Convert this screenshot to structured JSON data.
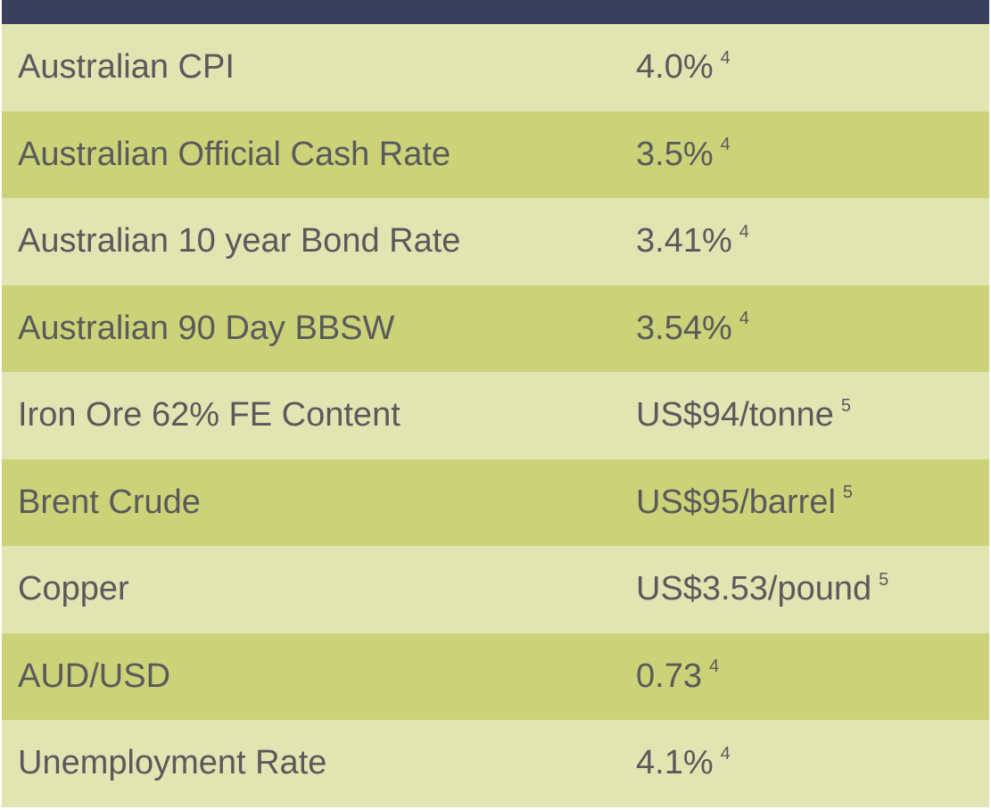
{
  "rows": [
    {
      "label": "Australian CPI",
      "value": "4.0%",
      "note": "4"
    },
    {
      "label": "Australian Official Cash Rate",
      "value": "3.5%",
      "note": "4"
    },
    {
      "label": "Australian 10 year Bond Rate",
      "value": "3.41%",
      "note": "4"
    },
    {
      "label": "Australian 90 Day BBSW",
      "value": "3.54%",
      "note": "4"
    },
    {
      "label": "Iron Ore 62% FE Content",
      "value": "US$94/tonne",
      "note": "5"
    },
    {
      "label": "Brent Crude",
      "value": "US$95/barrel",
      "note": "5"
    },
    {
      "label": "Copper",
      "value": "US$3.53/pound",
      "note": "5"
    },
    {
      "label": "AUD/USD",
      "value": "0.73",
      "note": "4"
    },
    {
      "label": "Unemployment Rate",
      "value": "4.1%",
      "note": "4"
    }
  ],
  "colors": {
    "header": "#3a405c",
    "row_light": "#e1e5b2",
    "row_dark": "#cbd277",
    "text": "#5a5a5c"
  }
}
